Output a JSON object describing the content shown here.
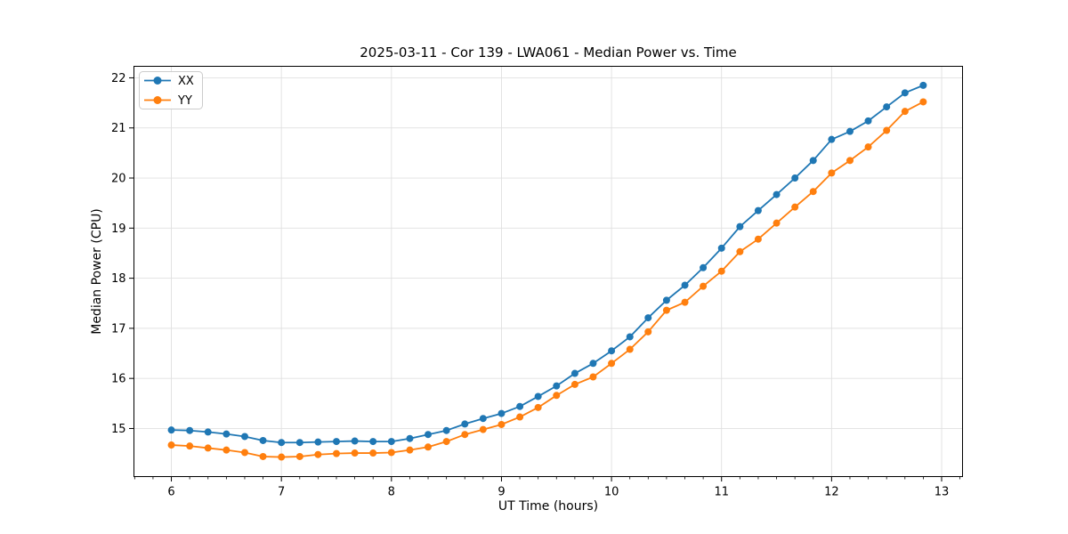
{
  "chart_data": {
    "type": "line",
    "title": "2025-03-11 - Cor 139 - LWA061 - Median Power vs. Time",
    "xlabel": "UT Time (hours)",
    "ylabel": "Median Power (CPU)",
    "xlim": [
      5.66,
      13.19
    ],
    "ylim": [
      14.04,
      22.23
    ],
    "x_ticks": [
      6,
      7,
      8,
      9,
      10,
      11,
      12,
      13
    ],
    "y_ticks": [
      15,
      16,
      17,
      18,
      19,
      20,
      21,
      22
    ],
    "x_minor_tick_step": 0.16667,
    "grid": true,
    "grid_color": "#e0e0e0",
    "spine_color": "#000000",
    "legend_position": "upper-left",
    "x": [
      6.0,
      6.167,
      6.333,
      6.5,
      6.667,
      6.833,
      7.0,
      7.167,
      7.333,
      7.5,
      7.667,
      7.833,
      8.0,
      8.167,
      8.333,
      8.5,
      8.667,
      8.833,
      9.0,
      9.167,
      9.333,
      9.5,
      9.667,
      9.833,
      10.0,
      10.167,
      10.333,
      10.5,
      10.667,
      10.833,
      11.0,
      11.167,
      11.333,
      11.5,
      11.667,
      11.833,
      12.0,
      12.167,
      12.333,
      12.5,
      12.667,
      12.833
    ],
    "series": [
      {
        "name": "XX",
        "color": "#1f77b4",
        "marker": "o",
        "values": [
          14.97,
          14.96,
          14.93,
          14.89,
          14.84,
          14.76,
          14.72,
          14.72,
          14.73,
          14.74,
          14.75,
          14.74,
          14.74,
          14.8,
          14.88,
          14.96,
          15.09,
          15.2,
          15.3,
          15.44,
          15.64,
          15.85,
          16.1,
          16.3,
          16.55,
          16.83,
          17.21,
          17.56,
          17.86,
          18.21,
          18.6,
          19.03,
          19.35,
          19.67,
          20.0,
          20.35,
          20.77,
          20.93,
          21.14,
          21.42,
          21.7,
          21.85
        ]
      },
      {
        "name": "YY",
        "color": "#ff7f0e",
        "marker": "o",
        "values": [
          14.67,
          14.65,
          14.61,
          14.57,
          14.52,
          14.44,
          14.43,
          14.44,
          14.48,
          14.5,
          14.51,
          14.51,
          14.52,
          14.57,
          14.63,
          14.74,
          14.88,
          14.98,
          15.08,
          15.23,
          15.42,
          15.66,
          15.88,
          16.03,
          16.3,
          16.58,
          16.93,
          17.36,
          17.52,
          17.84,
          18.14,
          18.53,
          18.78,
          19.1,
          19.42,
          19.73,
          20.1,
          20.35,
          20.62,
          20.95,
          21.33,
          21.52
        ]
      }
    ]
  }
}
